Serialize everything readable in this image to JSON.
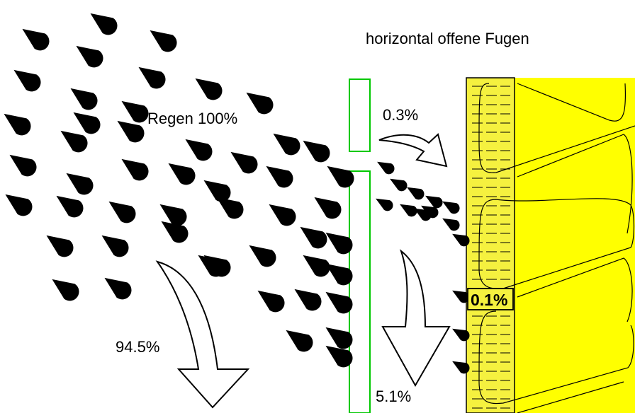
{
  "title": "horizontal offene Fugen",
  "labels": {
    "rain": "Regen 100%",
    "through_joint": "0.3%",
    "runoff_front": "94.5%",
    "runoff_back": "5.1%",
    "into_wall": "0.1%"
  },
  "colors": {
    "background": "#ffffff",
    "drop": "#000000",
    "panel_edge": "#00c800",
    "insulation": "#f5f13f",
    "wall": "#ffff00",
    "outline": "#000000"
  }
}
